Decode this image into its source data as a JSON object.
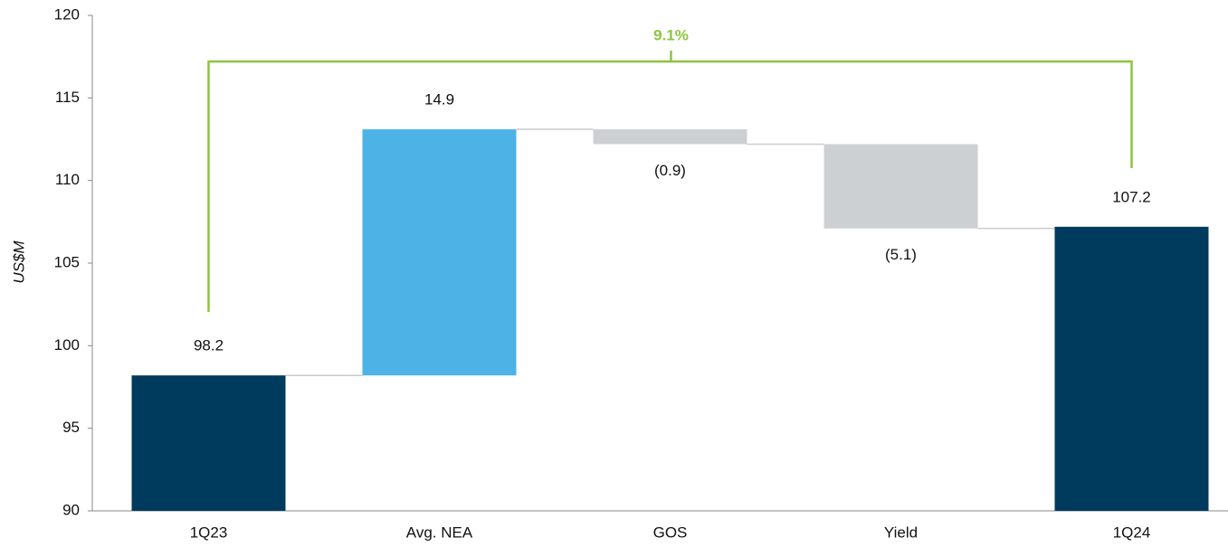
{
  "chart_data": {
    "type": "waterfall",
    "y_label": "US$M",
    "categories": [
      "1Q23",
      "Avg. NEA",
      "GOS",
      "Yield",
      "1Q24"
    ],
    "values": [
      98.2,
      14.9,
      -0.9,
      -5.1,
      107.2
    ],
    "value_labels": [
      "98.2",
      "14.9",
      "(0.9)",
      "(5.1)",
      "107.2"
    ],
    "measure": [
      "total",
      "relative",
      "relative",
      "relative",
      "total"
    ],
    "colors": [
      "#003a5c",
      "#4db3e6",
      "#ccd0d3",
      "#ccd0d3",
      "#003a5c"
    ],
    "ylim": [
      90,
      120
    ],
    "yticks": [
      90,
      95,
      100,
      105,
      110,
      115,
      120
    ],
    "grid": false,
    "annotation": {
      "text": "9.1%",
      "color": "#8cc63f"
    }
  }
}
